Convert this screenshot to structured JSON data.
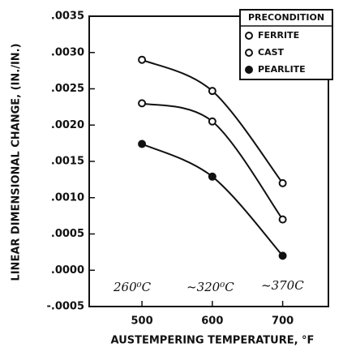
{
  "chart_data": {
    "type": "line",
    "xlabel": "AUSTEMPERING TEMPERATURE, °F",
    "ylabel": "LINEAR DIMENSIONAL CHANGE, (IN./IN.)",
    "legend_title": "PRECONDITION",
    "legend_position": "upper right",
    "x": [
      500,
      600,
      700
    ],
    "xlim": [
      425,
      765
    ],
    "xticks": [
      500,
      600,
      700
    ],
    "ylim": [
      -0.0005,
      0.0035
    ],
    "yticks": [
      {
        "value": -0.0005,
        "label": "-.0005"
      },
      {
        "value": 0,
        "label": ".0000"
      },
      {
        "value": 0.0005,
        "label": ".0005"
      },
      {
        "value": 0.001,
        "label": ".0010"
      },
      {
        "value": 0.0015,
        "label": ".0015"
      },
      {
        "value": 0.002,
        "label": ".0020"
      },
      {
        "value": 0.0025,
        "label": ".0025"
      },
      {
        "value": 0.003,
        "label": ".0030"
      },
      {
        "value": 0.0035,
        "label": ".0035"
      }
    ],
    "series": [
      {
        "name": "FERRITE",
        "color": "#111111",
        "marker": "open",
        "values": [
          0.0029,
          0.00247,
          0.0012
        ]
      },
      {
        "name": "CAST",
        "color": "#111111",
        "marker": "open",
        "values": [
          0.0023,
          0.00205,
          0.0007
        ]
      },
      {
        "name": "PEARLITE",
        "color": "#111111",
        "marker": "filled",
        "values": [
          0.00174,
          0.00129,
          0.0002
        ]
      }
    ],
    "annotations": [
      "260⁰C",
      "~320⁰C",
      "~370C"
    ]
  }
}
